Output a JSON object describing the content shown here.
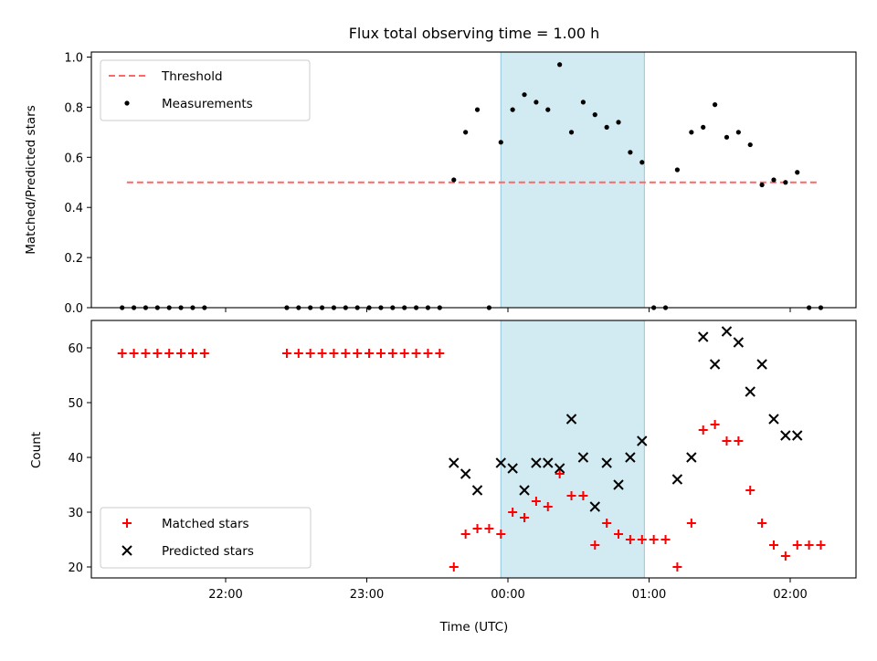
{
  "chart_data": [
    {
      "type": "scatter",
      "title": "Flux total observing time = 1.00 h",
      "ylabel": "Matched/Predicted stars",
      "xlabel": "",
      "ylim": [
        0,
        1.02
      ],
      "yticks": [
        "0.0",
        "0.2",
        "0.4",
        "0.6",
        "0.8",
        "1.0"
      ],
      "shaded_region": {
        "from": "23:57",
        "to": "00:58",
        "color": "#add8e6"
      },
      "threshold": {
        "name": "Threshold",
        "value": 0.5,
        "from": "21:18",
        "to": "02:12",
        "color": "#ff6666"
      },
      "legend": {
        "placement": "upper-left",
        "entries": [
          "Threshold",
          "Measurements"
        ]
      },
      "series": [
        {
          "name": "Measurements",
          "color": "#000000",
          "points": [
            [
              "21:16",
              0
            ],
            [
              "21:21",
              0
            ],
            [
              "21:26",
              0
            ],
            [
              "21:31",
              0
            ],
            [
              "21:36",
              0
            ],
            [
              "21:41",
              0
            ],
            [
              "21:46",
              0
            ],
            [
              "21:51",
              0
            ],
            [
              "22:26",
              0
            ],
            [
              "22:31",
              0
            ],
            [
              "22:36",
              0
            ],
            [
              "22:41",
              0
            ],
            [
              "22:46",
              0
            ],
            [
              "22:51",
              0
            ],
            [
              "22:56",
              0
            ],
            [
              "23:01",
              0
            ],
            [
              "23:06",
              0
            ],
            [
              "23:11",
              0
            ],
            [
              "23:16",
              0
            ],
            [
              "23:21",
              0
            ],
            [
              "23:26",
              0
            ],
            [
              "23:31",
              0
            ],
            [
              "23:37",
              0.51
            ],
            [
              "23:42",
              0.7
            ],
            [
              "23:47",
              0.79
            ],
            [
              "23:52",
              0
            ],
            [
              "23:57",
              0.66
            ],
            [
              "00:02",
              0.79
            ],
            [
              "00:07",
              0.85
            ],
            [
              "00:12",
              0.82
            ],
            [
              "00:17",
              0.79
            ],
            [
              "00:22",
              0.97
            ],
            [
              "00:27",
              0.7
            ],
            [
              "00:32",
              0.82
            ],
            [
              "00:37",
              0.77
            ],
            [
              "00:42",
              0.72
            ],
            [
              "00:47",
              0.74
            ],
            [
              "00:52",
              0.62
            ],
            [
              "00:57",
              0.58
            ],
            [
              "01:02",
              0
            ],
            [
              "01:07",
              0
            ],
            [
              "01:12",
              0.55
            ],
            [
              "01:18",
              0.7
            ],
            [
              "01:23",
              0.72
            ],
            [
              "01:28",
              0.81
            ],
            [
              "01:33",
              0.68
            ],
            [
              "01:38",
              0.7
            ],
            [
              "01:43",
              0.65
            ],
            [
              "01:48",
              0.49
            ],
            [
              "01:53",
              0.51
            ],
            [
              "01:58",
              0.5
            ],
            [
              "02:03",
              0.54
            ],
            [
              "02:08",
              0
            ],
            [
              "02:13",
              0
            ]
          ]
        }
      ]
    },
    {
      "type": "scatter",
      "xlabel": "Time (UTC)",
      "ylabel": "Count",
      "ylim": [
        18,
        65
      ],
      "yticks": [
        "20",
        "30",
        "40",
        "50",
        "60"
      ],
      "xticks": [
        "22:00",
        "23:00",
        "00:00",
        "01:00",
        "02:00"
      ],
      "shaded_region": {
        "from": "23:57",
        "to": "00:58",
        "color": "#add8e6"
      },
      "legend": {
        "placement": "lower-left",
        "entries": [
          "Matched stars",
          "Predicted stars"
        ]
      },
      "series": [
        {
          "name": "Matched stars",
          "color": "#ff0000",
          "marker": "plus",
          "points": [
            [
              "21:16",
              59
            ],
            [
              "21:21",
              59
            ],
            [
              "21:26",
              59
            ],
            [
              "21:31",
              59
            ],
            [
              "21:36",
              59
            ],
            [
              "21:41",
              59
            ],
            [
              "21:46",
              59
            ],
            [
              "21:51",
              59
            ],
            [
              "22:26",
              59
            ],
            [
              "22:31",
              59
            ],
            [
              "22:36",
              59
            ],
            [
              "22:41",
              59
            ],
            [
              "22:46",
              59
            ],
            [
              "22:51",
              59
            ],
            [
              "22:56",
              59
            ],
            [
              "23:01",
              59
            ],
            [
              "23:06",
              59
            ],
            [
              "23:11",
              59
            ],
            [
              "23:16",
              59
            ],
            [
              "23:21",
              59
            ],
            [
              "23:26",
              59
            ],
            [
              "23:31",
              59
            ],
            [
              "23:37",
              20
            ],
            [
              "23:42",
              26
            ],
            [
              "23:47",
              27
            ],
            [
              "23:52",
              27
            ],
            [
              "23:57",
              26
            ],
            [
              "00:02",
              30
            ],
            [
              "00:07",
              29
            ],
            [
              "00:12",
              32
            ],
            [
              "00:17",
              31
            ],
            [
              "00:22",
              37
            ],
            [
              "00:27",
              33
            ],
            [
              "00:32",
              33
            ],
            [
              "00:37",
              24
            ],
            [
              "00:42",
              28
            ],
            [
              "00:47",
              26
            ],
            [
              "00:52",
              25
            ],
            [
              "00:57",
              25
            ],
            [
              "01:02",
              25
            ],
            [
              "01:07",
              25
            ],
            [
              "01:12",
              20
            ],
            [
              "01:18",
              28
            ],
            [
              "01:23",
              45
            ],
            [
              "01:28",
              46
            ],
            [
              "01:33",
              43
            ],
            [
              "01:38",
              43
            ],
            [
              "01:43",
              34
            ],
            [
              "01:48",
              28
            ],
            [
              "01:53",
              24
            ],
            [
              "01:58",
              22
            ],
            [
              "02:03",
              24
            ],
            [
              "02:08",
              24
            ],
            [
              "02:13",
              24
            ]
          ]
        },
        {
          "name": "Predicted stars",
          "color": "#000000",
          "marker": "x",
          "points": [
            [
              "23:37",
              39
            ],
            [
              "23:42",
              37
            ],
            [
              "23:47",
              34
            ],
            [
              "23:57",
              39
            ],
            [
              "00:02",
              38
            ],
            [
              "00:07",
              34
            ],
            [
              "00:12",
              39
            ],
            [
              "00:17",
              39
            ],
            [
              "00:22",
              38
            ],
            [
              "00:27",
              47
            ],
            [
              "00:32",
              40
            ],
            [
              "00:37",
              31
            ],
            [
              "00:42",
              39
            ],
            [
              "00:47",
              35
            ],
            [
              "00:52",
              40
            ],
            [
              "00:57",
              43
            ],
            [
              "01:12",
              36
            ],
            [
              "01:18",
              40
            ],
            [
              "01:23",
              62
            ],
            [
              "01:28",
              57
            ],
            [
              "01:33",
              63
            ],
            [
              "01:38",
              61
            ],
            [
              "01:43",
              52
            ],
            [
              "01:48",
              57
            ],
            [
              "01:53",
              47
            ],
            [
              "01:58",
              44
            ],
            [
              "02:03",
              44
            ]
          ]
        }
      ]
    }
  ]
}
